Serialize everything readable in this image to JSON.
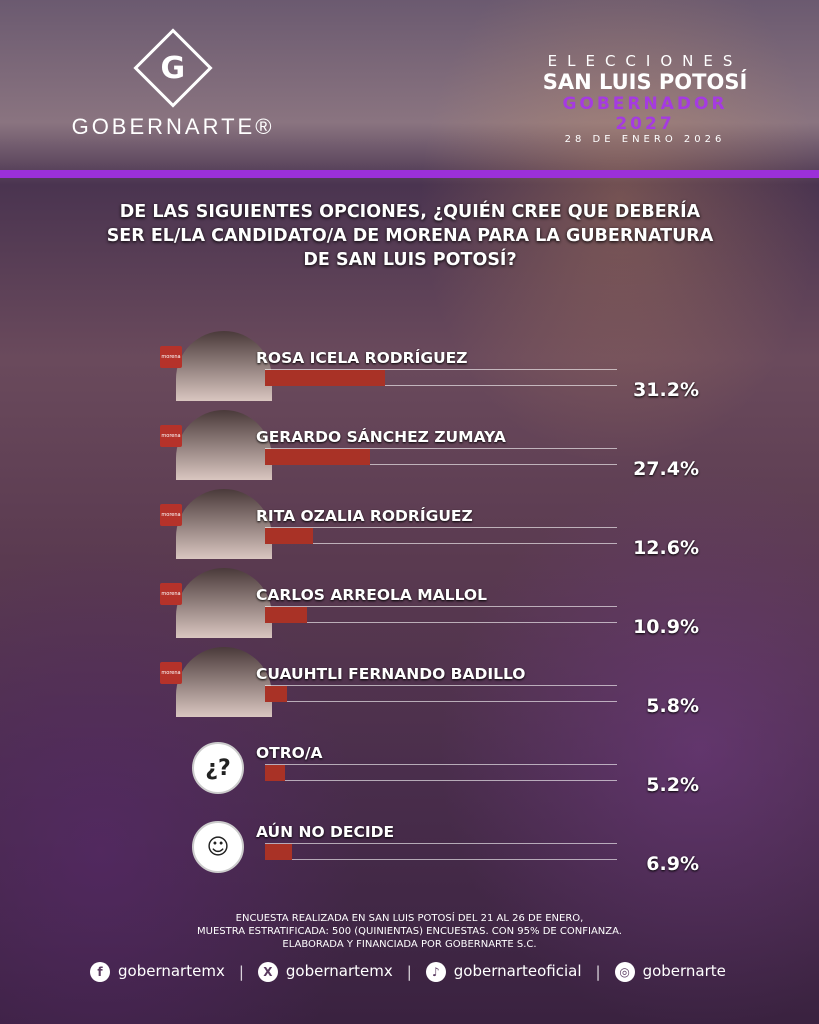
{
  "brand": {
    "logo_letter": "G",
    "name": "GOBERNARTE®"
  },
  "header": {
    "line1": "ELECCIONES",
    "line2": "SAN LUIS POTOSÍ",
    "line3": "GOBERNADOR 2027",
    "date": "28 DE ENERO 2026"
  },
  "question": "DE LAS SIGUIENTES OPCIONES, ¿QUIÉN CREE QUE DEBERÍA SER EL/LA CANDIDATO/A DE MORENA PARA LA GUBERNATURA DE SAN LUIS POTOSÍ?",
  "chart_data": {
    "type": "bar",
    "orientation": "horizontal",
    "bar_color": "#a93226",
    "xlim": [
      0,
      91
    ],
    "categories": [
      "ROSA ICELA RODRÍGUEZ",
      "GERARDO SÁNCHEZ ZUMAYA",
      "RITA OZALIA RODRÍGUEZ",
      "CARLOS ARREOLA MALLOL",
      "CUAUHTLI FERNANDO BADILLO",
      "OTRO/A",
      "AÚN NO DECIDE"
    ],
    "values": [
      31.2,
      27.4,
      12.6,
      10.9,
      5.8,
      5.2,
      6.9
    ],
    "labels": [
      "31.2%",
      "27.4%",
      "12.6%",
      "10.9%",
      "5.8%",
      "5.2%",
      "6.9%"
    ]
  },
  "party_badge": "morena",
  "footer": {
    "line1": "ENCUESTA REALIZADA EN SAN LUIS POTOSÍ DEL 21 AL 26 DE ENERO,",
    "line2": "MUESTRA ESTRATIFICADA: 500 (QUINIENTAS) ENCUESTAS. CON 95% DE CONFIANZA.",
    "line3": "ELABORADA Y FINANCIADA POR GOBERNARTE S.C."
  },
  "social": [
    {
      "icon": "facebook-icon",
      "handle": "gobernartemx"
    },
    {
      "icon": "x-icon",
      "handle": "gobernartemx"
    },
    {
      "icon": "tiktok-icon",
      "handle": "gobernarteoficial"
    },
    {
      "icon": "instagram-icon",
      "handle": "gobernarte"
    }
  ],
  "colors": {
    "accent": "#9b30d9",
    "bar": "#a93226"
  }
}
